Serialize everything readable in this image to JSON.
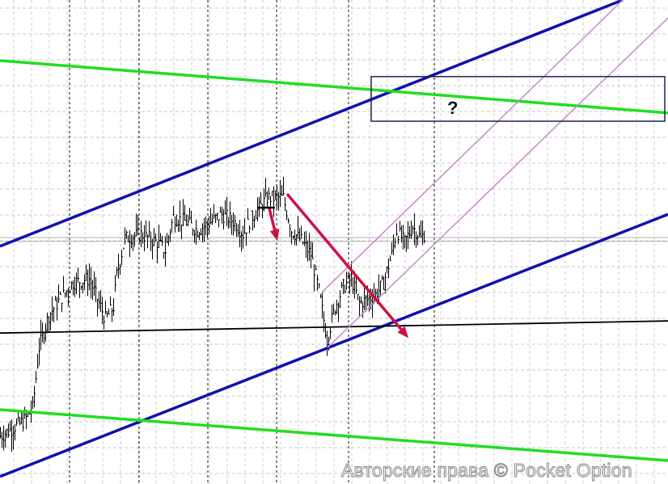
{
  "chart_data": {
    "type": "ohlc-bar",
    "title": "",
    "xlabel": "",
    "ylabel": "",
    "grid": true,
    "ylim": [
      0,
      100
    ],
    "xlim": [
      0,
      413
    ],
    "price_path": [
      [
        0,
        10
      ],
      [
        15,
        13.3
      ],
      [
        20,
        15.8
      ],
      [
        24,
        28.3
      ],
      [
        30,
        35
      ],
      [
        37,
        38.3
      ],
      [
        45,
        41.7
      ],
      [
        55,
        42.5
      ],
      [
        60,
        38.3
      ],
      [
        65,
        34.2
      ],
      [
        70,
        36.7
      ],
      [
        72,
        43.3
      ],
      [
        77,
        50.8
      ],
      [
        87,
        51.7
      ],
      [
        97,
        50
      ],
      [
        102,
        48.3
      ],
      [
        107,
        55.3
      ],
      [
        115,
        54.2
      ],
      [
        122,
        52.5
      ],
      [
        130,
        54.2
      ],
      [
        137,
        55.8
      ],
      [
        145,
        54.2
      ],
      [
        150,
        51.7
      ],
      [
        155,
        55
      ],
      [
        160,
        57
      ],
      [
        165,
        59.2
      ],
      [
        170,
        59.2
      ],
      [
        175,
        59.2
      ],
      [
        180,
        52.5
      ],
      [
        187,
        50
      ],
      [
        192,
        47.5
      ],
      [
        197,
        40
      ],
      [
        202,
        30
      ],
      [
        207,
        36.7
      ],
      [
        212,
        40.8
      ],
      [
        217,
        42.5
      ],
      [
        222,
        37.5
      ],
      [
        227,
        38.3
      ],
      [
        232,
        39.2
      ],
      [
        237,
        41.7
      ],
      [
        242,
        47.5
      ],
      [
        245,
        52.5
      ],
      [
        250,
        50
      ],
      [
        255,
        53.3
      ],
      [
        260,
        50.8
      ],
      [
        262,
        51.7
      ]
    ],
    "trendlines": [
      {
        "name": "blue-upper-channel",
        "color": "#1010b0",
        "p1": [
          0,
          49.2
        ],
        "p2": [
          385,
          100
        ]
      },
      {
        "name": "blue-lower-channel",
        "color": "#1010b0",
        "p1": [
          0,
          1.7
        ],
        "p2": [
          413,
          55.8
        ]
      },
      {
        "name": "green-upper-line",
        "color": "#22dd22",
        "p1": [
          0,
          87.5
        ],
        "p2": [
          413,
          76.7
        ]
      },
      {
        "name": "green-lower-line",
        "color": "#22dd22",
        "p1": [
          0,
          15.5
        ],
        "p2": [
          413,
          5
        ]
      },
      {
        "name": "black-support-line",
        "color": "#000000",
        "p1": [
          0,
          31.3
        ],
        "p2": [
          413,
          33.8
        ]
      },
      {
        "name": "purple-channel-upper",
        "color": "#c888d0",
        "p1": [
          199,
          39.7
        ],
        "p2": [
          385,
          100
        ]
      },
      {
        "name": "purple-channel-lower",
        "color": "#c888d0",
        "p1": [
          202.5,
          28.3
        ],
        "p2": [
          413,
          96.3
        ]
      }
    ],
    "horizontal_lines": [
      {
        "level": 51,
        "color": "#b0b0b0"
      },
      {
        "level": 50.2,
        "color": "#b0b0b0"
      }
    ],
    "arrows": [
      {
        "name": "small-down-arrow",
        "color": "#cc1144",
        "p1": [
          166.5,
          57
        ],
        "p2": [
          171.5,
          50.3
        ]
      },
      {
        "name": "large-down-arrow",
        "color": "#cc1144",
        "p1": [
          177.5,
          60
        ],
        "p2": [
          252.5,
          30.3
        ]
      }
    ],
    "target_box": {
      "label": "?",
      "x_range": [
        229.5,
        411
      ],
      "level_range": [
        75,
        84.2
      ],
      "color": "#202050"
    }
  },
  "watermark": "Авторские права © Pocket Option"
}
